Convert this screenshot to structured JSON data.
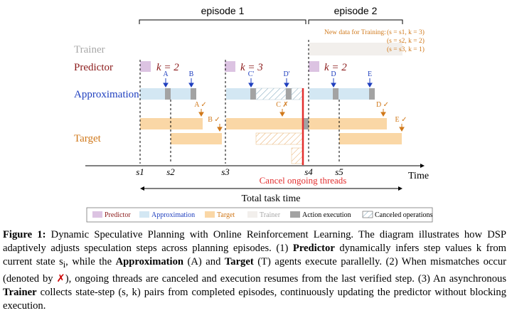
{
  "diagram": {
    "episode_1": "episode 1",
    "episode_2": "episode 2",
    "rows": {
      "trainer": "Trainer",
      "predictor": "Predictor",
      "approximation": "Approximation",
      "target": "Target"
    },
    "k_labels": [
      "k = 2",
      "k = 3",
      "k = 2"
    ],
    "approx_markers": [
      "A",
      "B",
      "C'",
      "D'",
      "D",
      "E"
    ],
    "target_markers": [
      "A ✓",
      "B ✓",
      "C ✗",
      "D ✓",
      "E ✓"
    ],
    "new_data_title": "New data for Training:",
    "new_data_pairs": [
      "(s = s1, k = 3)",
      "(s = s2, k = 2)",
      "(s = s3, k = 1)"
    ],
    "axis_ticks": [
      "s1",
      "s2",
      "s3",
      "s4",
      "s5"
    ],
    "axis_label": "Time",
    "cancel_label": "Cancel ongoing threads",
    "total_label": "Total task time",
    "legend": [
      "Predictor",
      "Approximation",
      "Target",
      "Trainer",
      "Action execution",
      "Canceled operations"
    ],
    "colors": {
      "predictor": "#dcc3e2",
      "approximation": "#d3e7f3",
      "target": "#fad7a6",
      "trainer": "#f2efec",
      "action": "#a3a3a3",
      "cancel": "#e32f2f",
      "predictor_text": "#8b1a1a",
      "approximation_text": "#1f3fbf",
      "target_text": "#d0781a",
      "trainer_text": "#a8a8a8"
    }
  },
  "caption": {
    "figure_label": "Figure 1:",
    "title": "Dynamic Speculative Planning with Online Reinforcement Learning.",
    "s1": "The diagram illustrates how DSP adaptively adjusts speculation steps across planning episodes. (1)",
    "predictor": "Predictor",
    "s2": "dynamically infers step values k from current state s",
    "s2_sub": "i",
    "s3": ", while the",
    "approximation": "Approximation",
    "s4": "(A) and",
    "target": "Target",
    "s5": "(T) agents execute parallelly. (2) When mismatches occur (denoted by",
    "mismatch": "✗",
    "s6": "), ongoing threads are canceled and execution resumes from the last verified step. (3) An asynchronous",
    "trainer": "Trainer",
    "s7": "collects state-step (s, k) pairs from completed episodes, continuously updating the predictor without blocking execution."
  }
}
